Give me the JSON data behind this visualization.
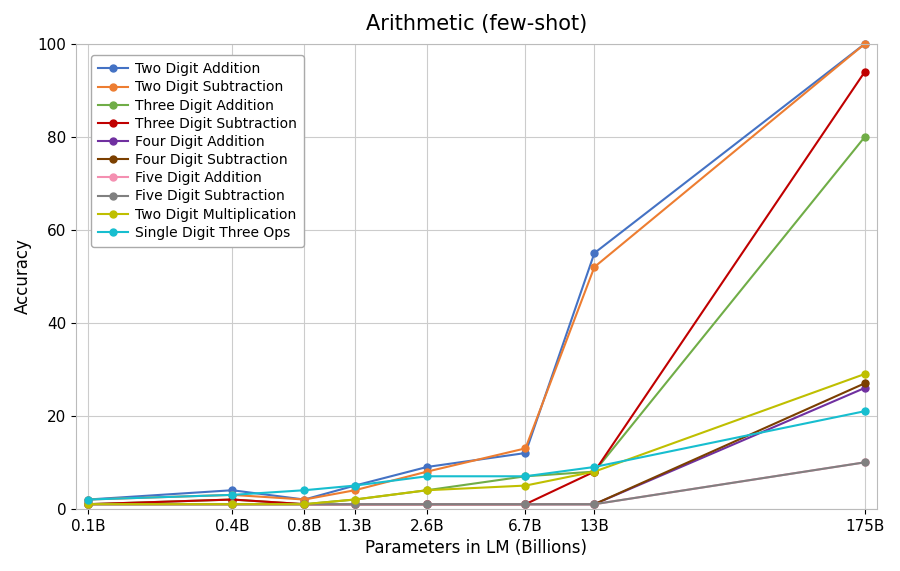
{
  "title": "Arithmetic (few-shot)",
  "xlabel": "Parameters in LM (Billions)",
  "ylabel": "Accuracy",
  "x_labels": [
    "0.1B",
    "0.4B",
    "0.8B",
    "1.3B",
    "2.6B",
    "6.7B",
    "13B",
    "175B"
  ],
  "x_numeric": [
    0.1,
    0.4,
    0.8,
    1.3,
    2.6,
    6.7,
    13,
    175
  ],
  "series": [
    {
      "label": "Two Digit Addition",
      "color": "#4472C4",
      "marker": "o",
      "values": [
        2,
        4,
        2,
        5,
        9,
        12,
        55,
        100
      ]
    },
    {
      "label": "Two Digit Subtraction",
      "color": "#ED7D31",
      "marker": "o",
      "values": [
        2,
        3,
        2,
        4,
        8,
        13,
        52,
        100
      ]
    },
    {
      "label": "Three Digit Addition",
      "color": "#70AD47",
      "marker": "o",
      "values": [
        1,
        2,
        1,
        2,
        4,
        7,
        8,
        80
      ]
    },
    {
      "label": "Three Digit Subtraction",
      "color": "#C00000",
      "marker": "o",
      "values": [
        1,
        2,
        1,
        1,
        1,
        1,
        8,
        94
      ]
    },
    {
      "label": "Four Digit Addition",
      "color": "#7030A0",
      "marker": "o",
      "values": [
        1,
        1,
        1,
        1,
        1,
        1,
        1,
        26
      ]
    },
    {
      "label": "Four Digit Subtraction",
      "color": "#7B3F00",
      "marker": "o",
      "values": [
        1,
        1,
        1,
        1,
        1,
        1,
        1,
        27
      ]
    },
    {
      "label": "Five Digit Addition",
      "color": "#F48FB1",
      "marker": "o",
      "values": [
        1,
        1,
        1,
        1,
        1,
        1,
        1,
        10
      ]
    },
    {
      "label": "Five Digit Subtraction",
      "color": "#808080",
      "marker": "o",
      "values": [
        1,
        1,
        1,
        1,
        1,
        1,
        1,
        10
      ]
    },
    {
      "label": "Two Digit Multiplication",
      "color": "#BFBF00",
      "marker": "o",
      "values": [
        1,
        1,
        1,
        2,
        4,
        5,
        8,
        29
      ]
    },
    {
      "label": "Single Digit Three Ops",
      "color": "#17BECF",
      "marker": "o",
      "values": [
        2,
        3,
        4,
        5,
        7,
        7,
        9,
        21
      ]
    }
  ],
  "ylim": [
    0,
    100
  ],
  "yticks": [
    0,
    20,
    40,
    60,
    80,
    100
  ],
  "background_color": "#ffffff",
  "grid_color": "#cccccc",
  "title_fontsize": 15,
  "legend_fontsize": 10,
  "axis_fontsize": 12
}
